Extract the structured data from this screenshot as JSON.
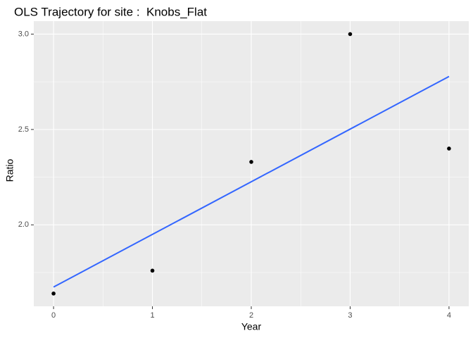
{
  "chart_data": {
    "type": "scatter",
    "title": "OLS Trajectory for site :  Knobs_Flat",
    "x_label": "Year",
    "y_label": "Ratio",
    "x": [
      0,
      1,
      2,
      3,
      4
    ],
    "values": [
      1.64,
      1.76,
      2.33,
      3.0,
      2.4
    ],
    "color": "#000000",
    "fit": {
      "x": [
        0,
        4
      ],
      "values": [
        1.674,
        2.778
      ],
      "color": "#3366ff"
    },
    "xlim": [
      -0.2,
      4.2
    ],
    "ylim": [
      1.573,
      3.068
    ],
    "xticks": [
      0,
      1,
      2,
      3,
      4
    ],
    "yticks": [
      {
        "value": 2.0,
        "label": "2.0"
      },
      {
        "value": 2.5,
        "label": "2.5"
      },
      {
        "value": 3.0,
        "label": "3.0"
      }
    ],
    "xminor": [
      0.5,
      1.5,
      2.5,
      3.5
    ],
    "yminor": [
      1.75,
      2.25,
      2.75
    ],
    "grid": true
  }
}
